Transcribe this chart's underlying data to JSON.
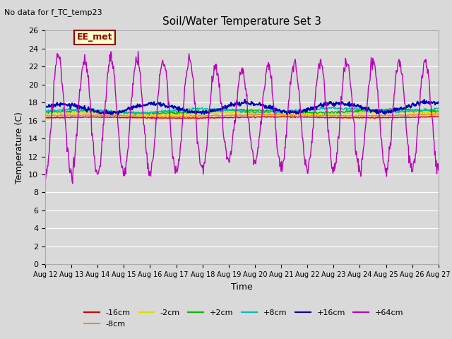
{
  "title": "Soil/Water Temperature Set 3",
  "subtitle": "No data for f_TC_temp23",
  "xlabel": "Time",
  "ylabel": "Temperature (C)",
  "ylim": [
    0,
    26
  ],
  "yticks": [
    0,
    2,
    4,
    6,
    8,
    10,
    12,
    14,
    16,
    18,
    20,
    22,
    24,
    26
  ],
  "xtick_labels": [
    "Aug 12",
    "Aug 13",
    "Aug 14",
    "Aug 15",
    "Aug 16",
    "Aug 17",
    "Aug 18",
    "Aug 19",
    "Aug 20",
    "Aug 21",
    "Aug 22",
    "Aug 23",
    "Aug 24",
    "Aug 25",
    "Aug 26",
    "Aug 27"
  ],
  "legend_label": "EE_met",
  "legend_box_facecolor": "#ffffcc",
  "legend_box_edgecolor": "#990000",
  "fig_facecolor": "#d9d9d9",
  "plot_facecolor": "#d9d9d9",
  "grid_color": "#ffffff",
  "series_order": [
    "-16cm",
    "-8cm",
    "-2cm",
    "+2cm",
    "+8cm",
    "+16cm",
    "+64cm"
  ],
  "series": {
    "-16cm": {
      "color": "#dd0000",
      "linewidth": 1.0
    },
    "-8cm": {
      "color": "#ff8800",
      "linewidth": 1.0
    },
    "-2cm": {
      "color": "#dddd00",
      "linewidth": 1.0
    },
    "+2cm": {
      "color": "#00bb00",
      "linewidth": 1.0
    },
    "+8cm": {
      "color": "#00bbbb",
      "linewidth": 1.0
    },
    "+16cm": {
      "color": "#0000bb",
      "linewidth": 1.5
    },
    "+64cm": {
      "color": "#bb00bb",
      "linewidth": 1.0
    }
  }
}
